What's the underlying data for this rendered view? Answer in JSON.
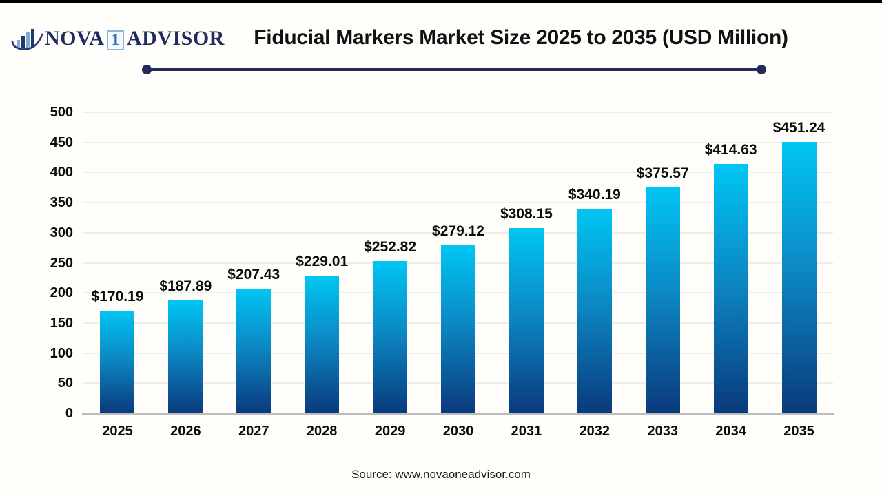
{
  "page": {
    "background": "#fffefb",
    "top_border_color": "#000000"
  },
  "header": {
    "logo": {
      "icon": "bar-chart-swoosh-icon",
      "text_nova": "NOVA",
      "text_one": "1",
      "text_advisor": "ADVISOR",
      "navy": "#1e2c5e",
      "light_blue": "#7fa9da"
    },
    "title": "Fiducial Markers Market Size 2025 to 2035 (USD Million)",
    "rule_color": "#242b58"
  },
  "footer": {
    "source": "Source: www.novaoneadvisor.com"
  },
  "chart_data": {
    "type": "bar",
    "title": "Fiducial Markers Market Size 2025 to 2035 (USD Million)",
    "categories": [
      "2025",
      "2026",
      "2027",
      "2028",
      "2029",
      "2030",
      "2031",
      "2032",
      "2033",
      "2034",
      "2035"
    ],
    "values": [
      170.19,
      187.89,
      207.43,
      229.01,
      252.82,
      279.12,
      308.15,
      340.19,
      375.57,
      414.63,
      451.24
    ],
    "value_labels": [
      "$170.19",
      "$187.89",
      "$207.43",
      "$229.01",
      "$252.82",
      "$279.12",
      "$308.15",
      "$340.19",
      "$375.57",
      "$414.63",
      "$451.24"
    ],
    "xlabel": "",
    "ylabel": "",
    "ylim": [
      0,
      500
    ],
    "yticks": [
      0,
      50,
      100,
      150,
      200,
      250,
      300,
      350,
      400,
      450,
      500
    ],
    "grid": true,
    "legend": false,
    "bar_color_top": "#00c6f3",
    "bar_color_mid": "#0c86c2",
    "bar_color_bottom": "#0a3a7c",
    "gridline_color": "#efedea",
    "axis_line_color": "#bdbdbd",
    "label_color": "#0a0a0a"
  }
}
